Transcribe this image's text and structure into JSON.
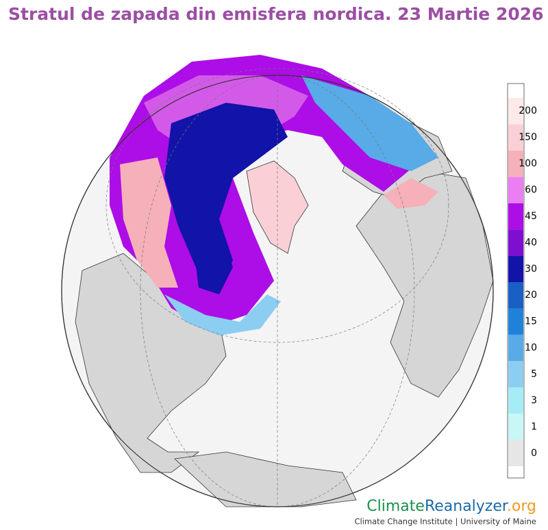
{
  "title": "Stratul de zapada din emisfera nordica. 23 Martie 2026",
  "legend": {
    "ticks": [
      0,
      1,
      3,
      5,
      10,
      15,
      20,
      30,
      40,
      45,
      60,
      100,
      150,
      200
    ],
    "colors": [
      "#e6e6e6",
      "#c9f6f6",
      "#a6ecf7",
      "#8ccdf2",
      "#58abe6",
      "#1f82da",
      "#1a5fc4",
      "#1213a8",
      "#7e0ed0",
      "#ad0de6",
      "#ea7ef2",
      "#f5b0ba",
      "#fad0d6",
      "#fde9ea"
    ]
  },
  "credit": {
    "climate": "Climate",
    "reanalyzer": "Reanalyzer",
    "org": ".org",
    "subtitle": "Climate Change Institute | University of Maine"
  }
}
